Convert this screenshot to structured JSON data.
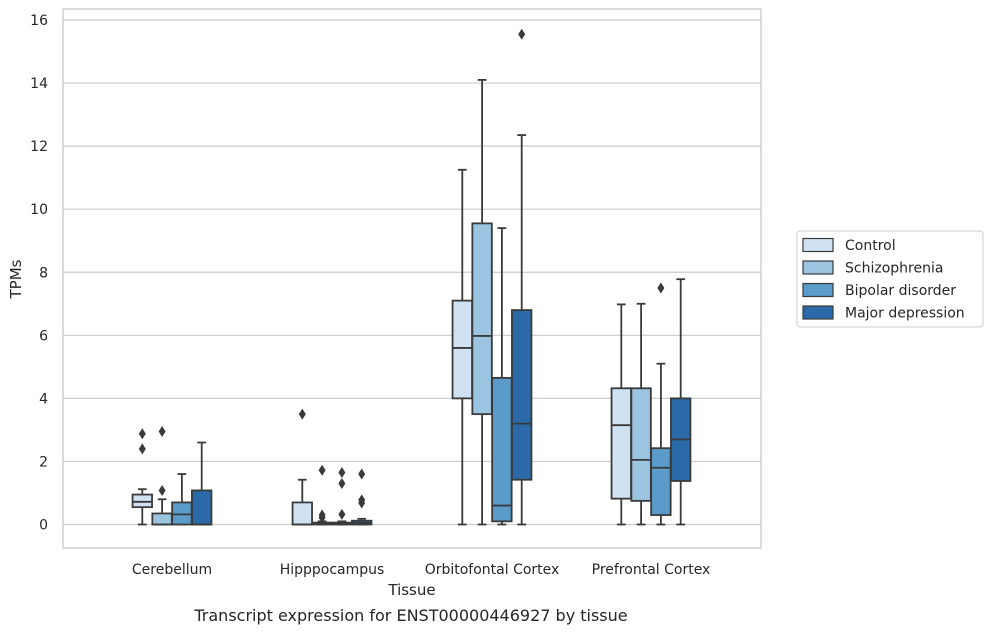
{
  "caption": "Transcript expression for ENST00000446927 by tissue",
  "chart_data": {
    "type": "boxplot",
    "xlabel": "Tissue",
    "ylabel": "TPMs",
    "ylim": [
      -0.75,
      16.35
    ],
    "yticks": [
      0,
      2,
      4,
      6,
      8,
      10,
      12,
      14,
      16
    ],
    "grid": "horizontal",
    "legend_position": "right",
    "categories": [
      "Cerebellum",
      "Hipppocampus",
      "Orbitofontal Cortex",
      "Prefrontal Cortex"
    ],
    "series": [
      {
        "name": "Control",
        "color": "#d0e2f2",
        "boxes": [
          {
            "whisker_low": 0.0,
            "q1": 0.55,
            "median": 0.72,
            "q3": 0.95,
            "whisker_high": 1.12,
            "outliers": [
              2.88,
              2.4
            ]
          },
          {
            "whisker_low": 0.0,
            "q1": 0.0,
            "median": 0.0,
            "q3": 0.7,
            "whisker_high": 1.42,
            "outliers": [
              3.5
            ]
          },
          {
            "whisker_low": 0.0,
            "q1": 4.0,
            "median": 5.6,
            "q3": 7.1,
            "whisker_high": 11.25,
            "outliers": []
          },
          {
            "whisker_low": 0.0,
            "q1": 0.82,
            "median": 3.15,
            "q3": 4.32,
            "whisker_high": 6.98,
            "outliers": []
          }
        ]
      },
      {
        "name": "Schizophrenia",
        "color": "#9ac4e0",
        "boxes": [
          {
            "whisker_low": 0.0,
            "q1": 0.0,
            "median": 0.0,
            "q3": 0.35,
            "whisker_high": 0.8,
            "outliers": [
              2.95,
              1.08
            ]
          },
          {
            "whisker_low": 0.0,
            "q1": 0.0,
            "median": 0.02,
            "q3": 0.06,
            "whisker_high": 0.1,
            "outliers": [
              1.72,
              0.3,
              0.22
            ]
          },
          {
            "whisker_low": 0.0,
            "q1": 3.5,
            "median": 5.98,
            "q3": 9.55,
            "whisker_high": 14.1,
            "outliers": []
          },
          {
            "whisker_low": 0.0,
            "q1": 0.75,
            "median": 2.05,
            "q3": 4.32,
            "whisker_high": 7.0,
            "outliers": []
          }
        ]
      },
      {
        "name": "Bipolar disorder",
        "color": "#5b9bc9",
        "boxes": [
          {
            "whisker_low": 0.0,
            "q1": 0.0,
            "median": 0.32,
            "q3": 0.7,
            "whisker_high": 1.6,
            "outliers": []
          },
          {
            "whisker_low": 0.0,
            "q1": 0.0,
            "median": 0.02,
            "q3": 0.06,
            "whisker_high": 0.1,
            "outliers": [
              1.65,
              1.3,
              0.32
            ]
          },
          {
            "whisker_low": 0.0,
            "q1": 0.1,
            "median": 0.6,
            "q3": 4.65,
            "whisker_high": 9.4,
            "outliers": []
          },
          {
            "whisker_low": 0.0,
            "q1": 0.3,
            "median": 1.8,
            "q3": 2.42,
            "whisker_high": 5.1,
            "outliers": [
              7.5
            ]
          }
        ]
      },
      {
        "name": "Major depression",
        "color": "#2b6aa8",
        "boxes": [
          {
            "whisker_low": 0.0,
            "q1": 0.0,
            "median": 0.0,
            "q3": 1.08,
            "whisker_high": 2.6,
            "outliers": []
          },
          {
            "whisker_low": 0.0,
            "q1": 0.0,
            "median": 0.05,
            "q3": 0.12,
            "whisker_high": 0.18,
            "outliers": [
              1.6,
              0.78,
              0.68
            ]
          },
          {
            "whisker_low": 0.0,
            "q1": 1.42,
            "median": 3.2,
            "q3": 6.8,
            "whisker_high": 12.35,
            "outliers": [
              15.55
            ]
          },
          {
            "whisker_low": 0.0,
            "q1": 1.38,
            "median": 2.7,
            "q3": 4.0,
            "whisker_high": 7.78,
            "outliers": []
          }
        ]
      }
    ]
  }
}
